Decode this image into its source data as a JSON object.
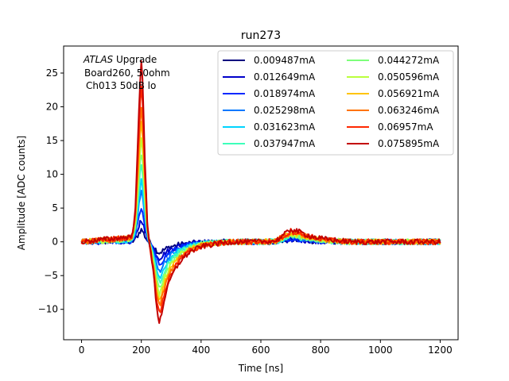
{
  "chart_data": {
    "type": "line",
    "title": "run273",
    "xlabel": "Time [ns]",
    "ylabel": "Amplitude [ADC counts]",
    "xlim": [
      -60,
      1260
    ],
    "ylim": [
      -14.5,
      29
    ],
    "xticks": [
      0,
      200,
      400,
      600,
      800,
      1000,
      1200
    ],
    "yticks": [
      -10,
      -5,
      0,
      5,
      10,
      15,
      20,
      25
    ],
    "grid": false,
    "legend": {
      "placement": "upper-right",
      "columns": 2
    },
    "annotation": {
      "italic": "ATLAS",
      "rest": " Upgrade",
      "line2": "Board260, 50ohm",
      "line3": "Ch013 50dB lo"
    },
    "pulse_shape": {
      "x": [
        0,
        170,
        180,
        190,
        195,
        200,
        205,
        210,
        220,
        230,
        240,
        250,
        255,
        260,
        265,
        270,
        280,
        300,
        330,
        360,
        400,
        450,
        500,
        600,
        650,
        690,
        700,
        710,
        730,
        760,
        800,
        900,
        1000,
        1100,
        1200
      ],
      "y": [
        0,
        0.03,
        0.2,
        0.62,
        0.87,
        1.0,
        0.88,
        0.55,
        0.12,
        -0.08,
        -0.3,
        -0.62,
        -0.75,
        -0.82,
        -0.78,
        -0.7,
        -0.55,
        -0.36,
        -0.2,
        -0.11,
        -0.05,
        -0.02,
        0,
        0,
        0.01,
        0.09,
        0.12,
        0.11,
        0.09,
        0.06,
        0.03,
        0.0,
        0,
        0,
        0
      ]
    },
    "series": [
      {
        "name": "0.009487mA",
        "color": "#00007f",
        "peak": 1.8,
        "trough": -1.6,
        "bump": 0.3,
        "noise": 0.4
      },
      {
        "name": "0.012649mA",
        "color": "#0000ca",
        "peak": 3.3,
        "trough": -2.4,
        "bump": 0.4,
        "noise": 0.4
      },
      {
        "name": "0.018974mA",
        "color": "#0028ff",
        "peak": 5.0,
        "trough": -3.3,
        "bump": 0.55,
        "noise": 0.4
      },
      {
        "name": "0.025298mA",
        "color": "#0078ff",
        "peak": 7.5,
        "trough": -4.3,
        "bump": 0.7,
        "noise": 0.4
      },
      {
        "name": "0.031623mA",
        "color": "#00d4ff",
        "peak": 9.2,
        "trough": -5.2,
        "bump": 0.8,
        "noise": 0.4
      },
      {
        "name": "0.037947mA",
        "color": "#3dffba",
        "peak": 11.5,
        "trough": -6.0,
        "bump": 0.9,
        "noise": 0.4
      },
      {
        "name": "0.044272mA",
        "color": "#7dff7a",
        "peak": 13.0,
        "trough": -6.9,
        "bump": 1.0,
        "noise": 0.4
      },
      {
        "name": "0.050596mA",
        "color": "#baff3d",
        "peak": 15.2,
        "trough": -7.8,
        "bump": 1.15,
        "noise": 0.4
      },
      {
        "name": "0.056921mA",
        "color": "#ffc400",
        "peak": 17.5,
        "trough": -8.6,
        "bump": 1.3,
        "noise": 0.4
      },
      {
        "name": "0.063246mA",
        "color": "#ff7300",
        "peak": 19.8,
        "trough": -9.5,
        "bump": 1.45,
        "noise": 0.4
      },
      {
        "name": "0.06957mA",
        "color": "#ff2800",
        "peak": 23.0,
        "trough": -10.6,
        "bump": 1.6,
        "noise": 0.4
      },
      {
        "name": "0.075895mA",
        "color": "#c30000",
        "peak": 26.5,
        "trough": -11.8,
        "bump": 1.9,
        "noise": 0.4
      }
    ]
  }
}
